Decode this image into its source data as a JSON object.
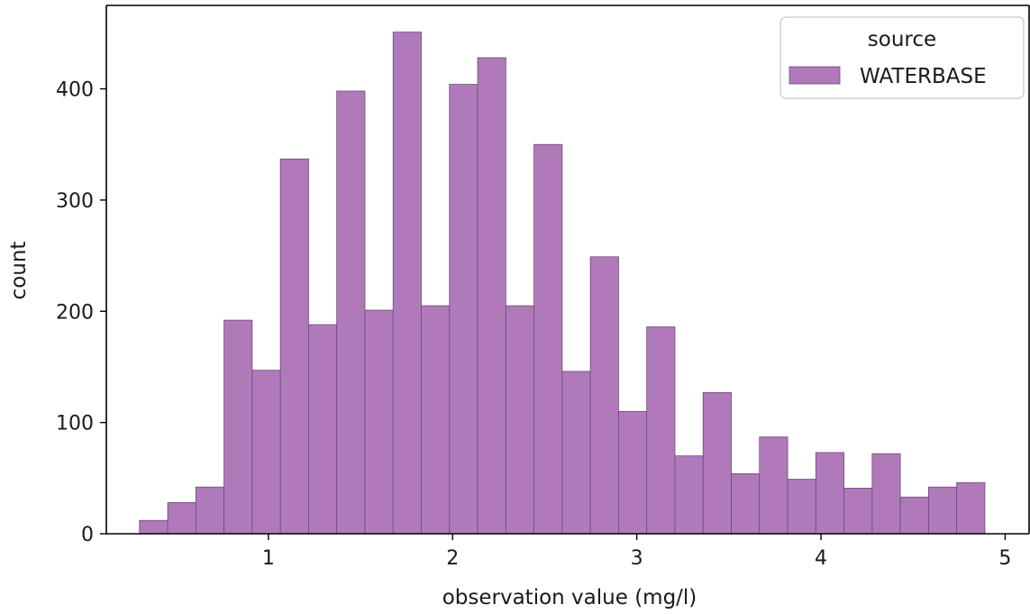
{
  "chart_data": {
    "type": "bar",
    "title": "",
    "xlabel": "observation value (mg/l)",
    "ylabel": "count",
    "xlim": [
      0.12,
      5.13
    ],
    "ylim": [
      0,
      475
    ],
    "xticks": [
      1,
      2,
      3,
      4,
      5
    ],
    "yticks": [
      0,
      100,
      200,
      300,
      400
    ],
    "grid": false,
    "legend": {
      "title": "source",
      "placement": "top-right",
      "entries": [
        {
          "label": "WATERBASE",
          "color": "#b07aba"
        }
      ]
    },
    "series": [
      {
        "name": "WATERBASE",
        "color": "#b07aba",
        "edge_color": "#6b4a73",
        "bin_width": 0.153,
        "bins": [
          {
            "x0": 0.3,
            "count": 12
          },
          {
            "x0": 0.453,
            "count": 28
          },
          {
            "x0": 0.606,
            "count": 42
          },
          {
            "x0": 0.759,
            "count": 192
          },
          {
            "x0": 0.912,
            "count": 147
          },
          {
            "x0": 1.065,
            "count": 337
          },
          {
            "x0": 1.218,
            "count": 188
          },
          {
            "x0": 1.371,
            "count": 398
          },
          {
            "x0": 1.524,
            "count": 201
          },
          {
            "x0": 1.677,
            "count": 451
          },
          {
            "x0": 1.83,
            "count": 205
          },
          {
            "x0": 1.983,
            "count": 404
          },
          {
            "x0": 2.136,
            "count": 428
          },
          {
            "x0": 2.289,
            "count": 205
          },
          {
            "x0": 2.442,
            "count": 350
          },
          {
            "x0": 2.595,
            "count": 146
          },
          {
            "x0": 2.748,
            "count": 249
          },
          {
            "x0": 2.901,
            "count": 110
          },
          {
            "x0": 3.054,
            "count": 186
          },
          {
            "x0": 3.207,
            "count": 70
          },
          {
            "x0": 3.36,
            "count": 127
          },
          {
            "x0": 3.513,
            "count": 54
          },
          {
            "x0": 3.666,
            "count": 87
          },
          {
            "x0": 3.819,
            "count": 49
          },
          {
            "x0": 3.972,
            "count": 73
          },
          {
            "x0": 4.125,
            "count": 41
          },
          {
            "x0": 4.278,
            "count": 72
          },
          {
            "x0": 4.431,
            "count": 33
          },
          {
            "x0": 4.584,
            "count": 42
          },
          {
            "x0": 4.737,
            "count": 46
          }
        ]
      }
    ]
  }
}
